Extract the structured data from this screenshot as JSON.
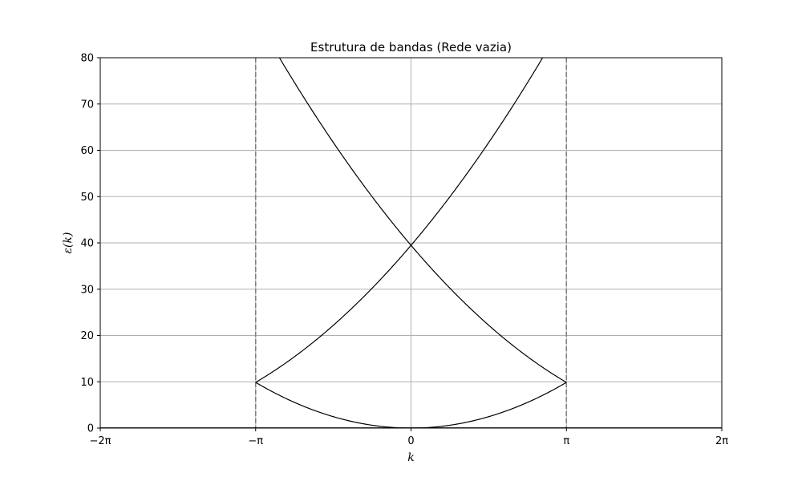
{
  "chart_data": {
    "type": "line",
    "title": "Estrutura de bandas (Rede vazia)",
    "xlabel": "k",
    "ylabel": "ε(k)",
    "xlim": [
      -6.2832,
      6.2832
    ],
    "ylim": [
      0,
      80
    ],
    "x_ticks": [
      {
        "value": -6.2832,
        "label": "−2π"
      },
      {
        "value": -3.1416,
        "label": "−π"
      },
      {
        "value": 0,
        "label": "0"
      },
      {
        "value": 3.1416,
        "label": "π"
      },
      {
        "value": 6.2832,
        "label": "2π"
      }
    ],
    "y_ticks": [
      0,
      10,
      20,
      30,
      40,
      50,
      60,
      70,
      80
    ],
    "grid": true,
    "brillouin_zone_boundaries": [
      -3.1416,
      3.1416
    ],
    "bands": [
      {
        "shift": 0,
        "coefficient": 1.0,
        "domain": [
          -3.1416,
          3.1416
        ]
      },
      {
        "shift": 6.2832,
        "coefficient": 1.0,
        "domain": [
          -3.1416,
          3.1416
        ]
      },
      {
        "shift": -6.2832,
        "coefficient": 1.0,
        "domain": [
          -3.1416,
          3.1416
        ]
      }
    ],
    "baseline": {
      "y": 0,
      "domain": [
        -6.2832,
        6.2832
      ]
    },
    "colors": {
      "band": "#000000",
      "grid": "#b0b0b0",
      "boundary": "#808080",
      "axes": "#000000"
    }
  }
}
